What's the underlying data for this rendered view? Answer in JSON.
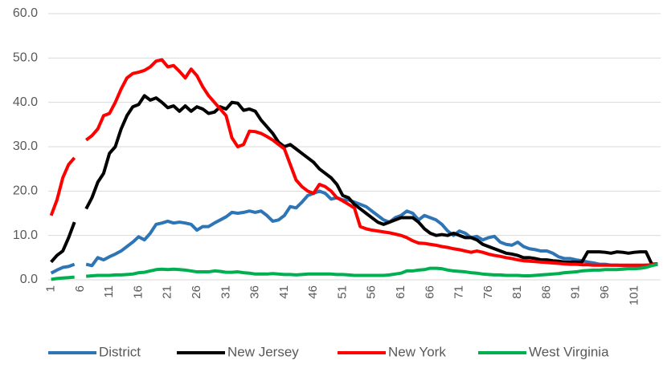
{
  "chart_data": {
    "type": "line",
    "categories": [
      "1",
      null,
      null,
      null,
      null,
      "6",
      null,
      null,
      null,
      null,
      "11",
      null,
      null,
      null,
      null,
      "16",
      null,
      null,
      null,
      null,
      "21",
      null,
      null,
      null,
      null,
      "26",
      null,
      null,
      null,
      null,
      "31",
      null,
      null,
      null,
      null,
      "36",
      null,
      null,
      null,
      null,
      "41",
      null,
      null,
      null,
      null,
      "46",
      null,
      null,
      null,
      null,
      "51",
      null,
      null,
      null,
      null,
      "56",
      null,
      null,
      null,
      null,
      "61",
      null,
      null,
      null,
      null,
      "66",
      null,
      null,
      null,
      null,
      "71",
      null,
      null,
      null,
      null,
      "76",
      null,
      null,
      null,
      null,
      "81",
      null,
      null,
      null,
      null,
      "86",
      null,
      null,
      null,
      null,
      "91",
      null,
      null,
      null,
      null,
      "96",
      null,
      null,
      null,
      null,
      "101",
      null,
      null,
      null,
      null
    ],
    "series": [
      {
        "name": "District",
        "color": "#2e75b6",
        "values": [
          1.5,
          2.2,
          2.8,
          3.0,
          3.5,
          null,
          3.5,
          3.2,
          5.0,
          4.5,
          5.2,
          5.8,
          6.5,
          7.5,
          8.5,
          9.7,
          9.0,
          10.5,
          12.5,
          12.8,
          13.2,
          12.8,
          13.0,
          12.8,
          12.5,
          11.2,
          12.0,
          12.0,
          12.8,
          13.5,
          14.2,
          15.2,
          15.0,
          15.2,
          15.5,
          15.2,
          15.5,
          14.5,
          13.2,
          13.5,
          14.5,
          16.5,
          16.2,
          17.5,
          19.0,
          19.5,
          20.0,
          19.5,
          18.2,
          18.5,
          18.0,
          18.0,
          17.5,
          17.0,
          16.5,
          15.5,
          14.5,
          13.5,
          13.0,
          14.0,
          14.5,
          15.5,
          15.0,
          13.5,
          14.5,
          14.0,
          13.5,
          12.5,
          11.0,
          10.0,
          11.0,
          10.5,
          9.5,
          9.8,
          9.0,
          9.5,
          9.8,
          8.5,
          8.0,
          7.8,
          8.5,
          7.5,
          7.0,
          6.8,
          6.5,
          6.5,
          6.0,
          5.2,
          4.8,
          4.8,
          4.5,
          4.3,
          4.0,
          3.8,
          3.5,
          3.5,
          3.3,
          3.3,
          3.2,
          3.2,
          3.2,
          3.2,
          3.3,
          3.4,
          3.5
        ]
      },
      {
        "name": "New Jersey",
        "color": "#000000",
        "values": [
          4.0,
          5.5,
          6.5,
          9.5,
          13.0,
          null,
          16.0,
          18.5,
          22.0,
          24.0,
          28.5,
          30.0,
          34.0,
          37.0,
          39.0,
          39.5,
          41.5,
          40.5,
          41.0,
          40.0,
          38.8,
          39.2,
          38.0,
          39.2,
          38.0,
          39.0,
          38.5,
          37.5,
          37.8,
          39.0,
          38.5,
          40.0,
          39.8,
          38.2,
          38.5,
          38.0,
          36.0,
          34.5,
          33.0,
          31.0,
          30.0,
          30.5,
          29.5,
          28.5,
          27.5,
          26.5,
          25.0,
          24.0,
          23.0,
          21.5,
          19.0,
          18.5,
          17.0,
          16.0,
          15.0,
          14.0,
          13.0,
          12.5,
          13.0,
          13.5,
          14.0,
          14.0,
          14.0,
          13.0,
          11.5,
          10.5,
          10.0,
          10.2,
          10.0,
          10.5,
          10.0,
          9.5,
          9.5,
          9.0,
          8.0,
          7.5,
          7.0,
          6.5,
          6.0,
          5.8,
          5.5,
          5.0,
          5.0,
          4.8,
          4.5,
          4.5,
          4.3,
          4.2,
          4.0,
          4.0,
          4.0,
          4.0,
          6.3,
          6.3,
          6.3,
          6.2,
          6.0,
          6.3,
          6.2,
          6.0,
          6.2,
          6.3,
          6.3,
          3.5,
          3.6
        ]
      },
      {
        "name": "New York",
        "color": "#ff0000",
        "values": [
          14.5,
          18.0,
          23.0,
          26.0,
          27.5,
          null,
          31.5,
          32.5,
          34.0,
          37.0,
          37.5,
          40.0,
          43.0,
          45.5,
          46.5,
          46.8,
          47.2,
          48.0,
          49.3,
          49.6,
          48.0,
          48.3,
          47.0,
          45.5,
          47.5,
          46.0,
          43.5,
          41.5,
          40.0,
          38.5,
          37.0,
          32.0,
          30.0,
          30.5,
          33.5,
          33.4,
          33.0,
          32.3,
          31.5,
          30.5,
          29.5,
          26.0,
          22.5,
          21.0,
          20.0,
          19.5,
          21.5,
          21.0,
          20.0,
          18.5,
          17.8,
          17.0,
          16.2,
          12.0,
          11.5,
          11.2,
          11.0,
          10.8,
          10.6,
          10.3,
          10.0,
          9.5,
          8.8,
          8.3,
          8.2,
          8.0,
          7.8,
          7.5,
          7.3,
          7.0,
          6.8,
          6.5,
          6.2,
          6.5,
          6.2,
          5.8,
          5.5,
          5.3,
          5.0,
          4.8,
          4.5,
          4.3,
          4.2,
          4.1,
          4.0,
          3.9,
          3.8,
          3.7,
          3.6,
          3.5,
          3.5,
          3.4,
          3.4,
          3.3,
          3.3,
          3.3,
          3.3,
          3.3,
          3.3,
          3.3,
          3.3,
          3.3,
          3.3,
          3.4,
          3.5
        ]
      },
      {
        "name": "West Virginia",
        "color": "#00b050",
        "values": [
          0.1,
          0.3,
          0.4,
          0.5,
          0.6,
          null,
          0.8,
          0.9,
          1.0,
          1.0,
          1.0,
          1.1,
          1.1,
          1.2,
          1.3,
          1.6,
          1.7,
          2.0,
          2.3,
          2.4,
          2.3,
          2.4,
          2.3,
          2.2,
          2.0,
          1.8,
          1.8,
          1.8,
          2.0,
          1.9,
          1.7,
          1.7,
          1.8,
          1.6,
          1.5,
          1.3,
          1.3,
          1.3,
          1.4,
          1.3,
          1.2,
          1.2,
          1.1,
          1.2,
          1.3,
          1.3,
          1.3,
          1.3,
          1.3,
          1.2,
          1.2,
          1.1,
          1.0,
          1.0,
          1.0,
          1.0,
          1.0,
          1.0,
          1.1,
          1.3,
          1.5,
          2.0,
          2.0,
          2.2,
          2.3,
          2.6,
          2.6,
          2.5,
          2.2,
          2.0,
          1.9,
          1.8,
          1.6,
          1.5,
          1.3,
          1.2,
          1.1,
          1.1,
          1.0,
          1.0,
          1.0,
          0.9,
          0.9,
          1.0,
          1.1,
          1.2,
          1.3,
          1.4,
          1.6,
          1.7,
          1.8,
          2.0,
          2.1,
          2.2,
          2.2,
          2.3,
          2.3,
          2.3,
          2.4,
          2.5,
          2.5,
          2.6,
          2.8,
          3.2,
          3.5
        ]
      }
    ],
    "ylim": [
      0,
      60
    ],
    "yticks": [
      {
        "value": 0,
        "label": "0.0"
      },
      {
        "value": 10,
        "label": "10.0"
      },
      {
        "value": 20,
        "label": "20.0"
      },
      {
        "value": 30,
        "label": "30.0"
      },
      {
        "value": 40,
        "label": "40.0"
      },
      {
        "value": 50,
        "label": "50.0"
      },
      {
        "value": 60,
        "label": "60.0"
      }
    ],
    "grid": true,
    "legend": "bottom"
  }
}
